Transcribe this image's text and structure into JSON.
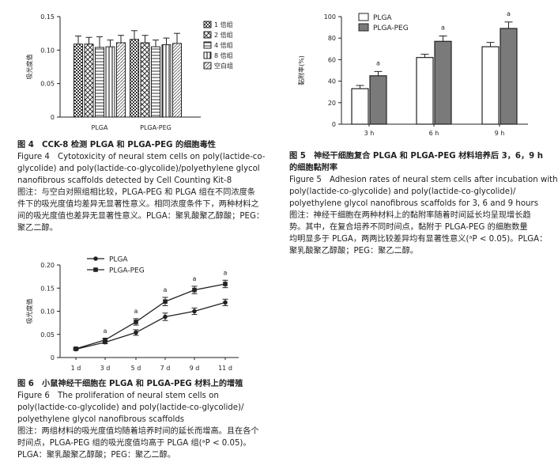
{
  "chart_data": [
    {
      "id": "fig4",
      "type": "bar",
      "ylabel": "吸光度值",
      "ylim": [
        0,
        0.15
      ],
      "yticks": [
        "0.15",
        "0.10",
        "0.05",
        "0"
      ],
      "categories": [
        "PLGA",
        "PLGA-PEG"
      ],
      "series": [
        {
          "name": "1 倍组",
          "values": [
            0.109,
            0.116
          ],
          "err": [
            0.012,
            0.013
          ]
        },
        {
          "name": "2 倍组",
          "values": [
            0.109,
            0.111
          ],
          "err": [
            0.01,
            0.011
          ]
        },
        {
          "name": "4 倍组",
          "values": [
            0.104,
            0.105
          ],
          "err": [
            0.016,
            0.01
          ]
        },
        {
          "name": "8 倍组",
          "values": [
            0.105,
            0.108
          ],
          "err": [
            0.01,
            0.01
          ]
        },
        {
          "name": "空白组",
          "values": [
            0.111,
            0.11
          ],
          "err": [
            0.011,
            0.015
          ]
        }
      ],
      "grid": false,
      "legend": "right"
    },
    {
      "id": "fig5",
      "type": "bar",
      "ylabel": "黏附率(%)",
      "ylim": [
        0,
        100
      ],
      "yticks": [
        "100",
        "80",
        "60",
        "40",
        "20",
        "0"
      ],
      "categories": [
        "3 h",
        "6 h",
        "9 h"
      ],
      "series": [
        {
          "name": "PLGA",
          "values": [
            33,
            62,
            72
          ],
          "err": [
            3,
            3,
            4
          ]
        },
        {
          "name": "PLGA-PEG",
          "values": [
            45,
            77,
            89
          ],
          "err": [
            4,
            5,
            6
          ]
        }
      ],
      "annotations": [
        {
          "category": "3 h",
          "series": "PLGA-PEG",
          "text": "a"
        },
        {
          "category": "6 h",
          "series": "PLGA-PEG",
          "text": "a"
        },
        {
          "category": "9 h",
          "series": "PLGA-PEG",
          "text": "a"
        }
      ],
      "grid": false,
      "legend": "top-left"
    },
    {
      "id": "fig6",
      "type": "line",
      "ylabel": "吸光度值",
      "ylim": [
        0,
        0.2
      ],
      "yticks": [
        "0.20",
        "0.15",
        "0.10",
        "0.05",
        "0"
      ],
      "categories": [
        "1 d",
        "3 d",
        "5 d",
        "7 d",
        "9 d",
        "11 d"
      ],
      "series": [
        {
          "name": "PLGA",
          "marker": "circle",
          "values": [
            0.018,
            0.033,
            0.054,
            0.088,
            0.1,
            0.119
          ],
          "err": [
            0.002,
            0.003,
            0.006,
            0.008,
            0.007,
            0.007
          ]
        },
        {
          "name": "PLGA-PEG",
          "marker": "square",
          "values": [
            0.019,
            0.038,
            0.077,
            0.121,
            0.146,
            0.159
          ],
          "err": [
            0.002,
            0.003,
            0.007,
            0.009,
            0.008,
            0.008
          ]
        }
      ],
      "annotations": [
        {
          "category": "3 d",
          "text": "a"
        },
        {
          "category": "5 d",
          "text": "a"
        },
        {
          "category": "7 d",
          "text": "a"
        },
        {
          "category": "9 d",
          "text": "a"
        },
        {
          "category": "11 d",
          "text": "a"
        }
      ],
      "grid": false,
      "legend": "top-left"
    }
  ],
  "captions": {
    "fig4": [
      "图 4　CCK-8 检测 PLGA 和 PLGA-PEG 的细胞毒性",
      "Figure 4　Cytotoxicity of neural stem cells on poly(lactide-co-",
      "glycolide) and poly(lactide-co-glycolide)/polyethylene glycol",
      "nanofibrous scaffolds detected by Cell Counting Kit-8",
      "图注：与空白对照组相比较，PLGA-PEG 和 PLGA 组在不同浓度条",
      "件下的吸光度值均差异无显著性意义。相同浓度条件下，两种材料之",
      "间的吸光度值也差异无显著性意义。PLGA：聚乳酸聚乙醇酸；PEG：",
      "聚乙二醇。"
    ],
    "fig5": [
      "图 5　神经干细胞复合 PLGA 和 PLGA-PEG 材料培养后 3，6，9 h",
      "的细胞黏附率",
      "Figure 5　Adhesion rates of neural stem cells after incubation with",
      "poly(lactide-co-glycolide) and poly(lactide-co-glycolide)/",
      "polyethylene glycol nanofibrous scaffolds for 3, 6 and 9 hours",
      "图注：神经干细胞在两种材料上的黏附率随着时间延长均呈现增长趋",
      "势。其中，在复合培养不同时间点，黏附于 PLGA-PEG 的细胞数量",
      "均明显多于 PLGA，两两比较差异均有显著性意义(ᵃP < 0.05)。PLGA：",
      "聚乳酸聚乙醇酸；PEG：聚乙二醇。"
    ],
    "fig6": [
      "图 6　小鼠神经干细胞在 PLGA 和 PLGA-PEG 材料上的增殖",
      "Figure 6　The proliferation of neural stem cells on",
      "poly(lactide-co-glycolide) and poly(lactide-co-glycolide)/",
      "polyethylene glycol nanofibrous scaffolds",
      "图注：两组材料的吸光度值均随着培养时间的延长而增高。且在各个",
      "时间点，PLGA-PEG 组的吸光度值均高于 PLGA 组(ᵃP < 0.05)。",
      "PLGA：聚乳酸聚乙醇酸；PEG：聚乙二醇。"
    ]
  },
  "colors": {
    "bar_plga": "#ffffff",
    "bar_plga_peg": "#7a7a7a",
    "line": "#222222"
  }
}
